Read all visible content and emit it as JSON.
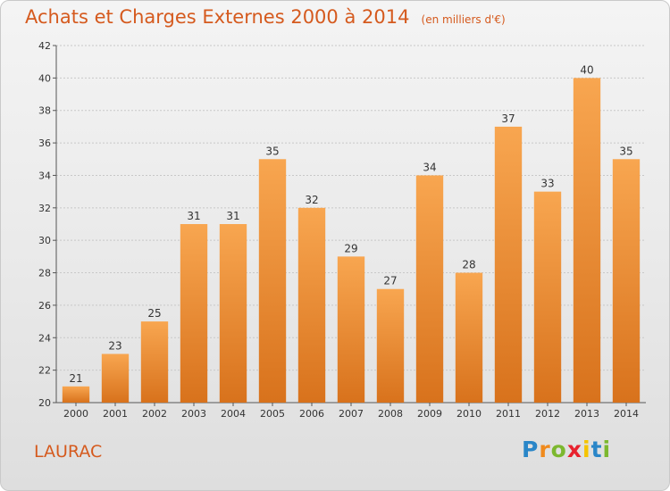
{
  "chart_data": {
    "type": "bar",
    "title": "Achats et Charges Externes 2000 à 2014",
    "subtitle": "(en milliers d'€)",
    "categories": [
      "2000",
      "2001",
      "2002",
      "2003",
      "2004",
      "2005",
      "2006",
      "2007",
      "2008",
      "2009",
      "2010",
      "2011",
      "2012",
      "2013",
      "2014"
    ],
    "values": [
      21,
      23,
      25,
      31,
      31,
      35,
      32,
      29,
      27,
      34,
      28,
      37,
      33,
      40,
      35
    ],
    "ylim": [
      20,
      42
    ],
    "yticks": [
      20,
      22,
      24,
      26,
      28,
      30,
      32,
      34,
      36,
      38,
      40,
      42
    ],
    "grid": true,
    "bar_color": "#f0922f"
  },
  "place_name": "LAURAC",
  "brand": {
    "letters": [
      "P",
      "r",
      "o",
      "x",
      "i",
      "t",
      "i"
    ],
    "colors": [
      "#2a86c8",
      "#f08a1c",
      "#7cb82f",
      "#e8222e",
      "#f5c400",
      "#2a86c8",
      "#7cb82f"
    ]
  }
}
